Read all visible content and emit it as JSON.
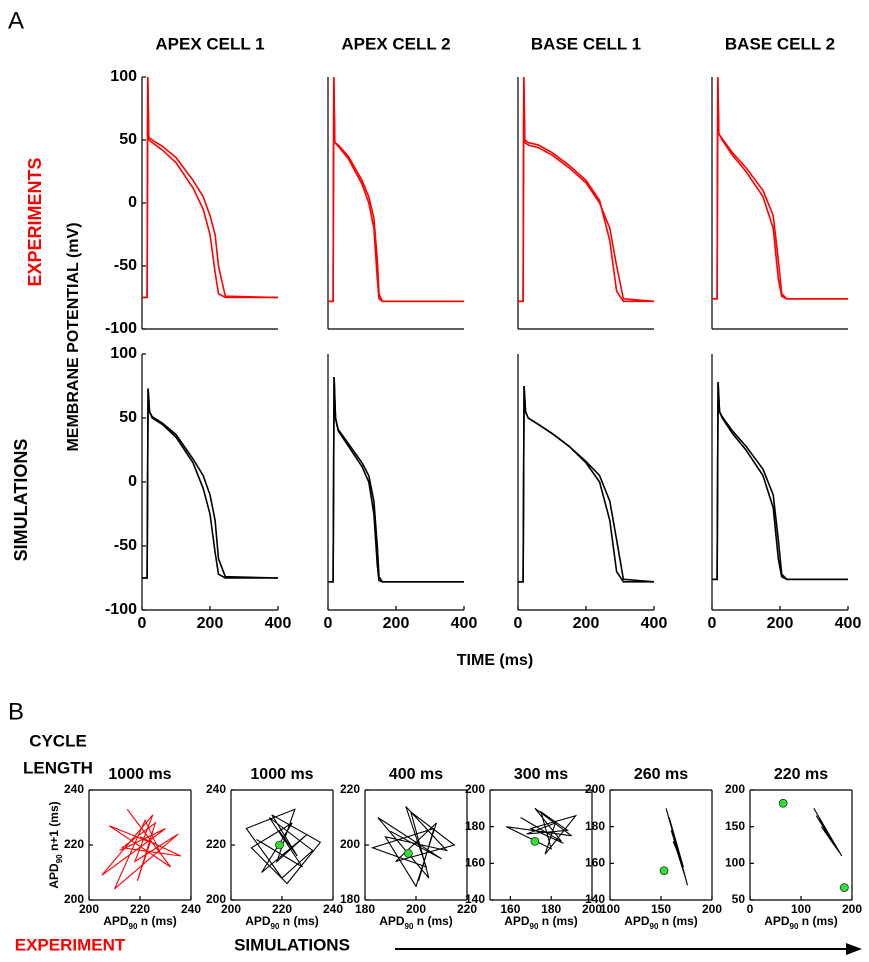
{
  "panel_labels": [
    "A",
    "B"
  ],
  "ylabel": "MEMBRANE POTENTIAL (mV)",
  "xlabel": "TIME (ms)",
  "row_labels": [
    "EXPERIMENTS",
    "SIMULATIONS"
  ],
  "cycle_length_label": [
    "CYCLE",
    "LENGTH"
  ],
  "footer": [
    "EXPERIMENT",
    "SIMULATIONS"
  ],
  "chart_data": [
    {
      "type": "line",
      "title": "APEX CELL 1",
      "xlim": [
        0,
        400
      ],
      "ylim": [
        -100,
        100
      ],
      "yticks": [
        -100,
        -50,
        0,
        50,
        100
      ],
      "x": [
        0,
        15,
        17,
        20,
        30,
        60,
        100,
        150,
        180,
        200,
        215,
        225,
        245,
        400
      ],
      "series": [
        {
          "color": "#ff0000",
          "values": [
            -75,
            -75,
            100,
            50,
            48,
            42,
            32,
            12,
            -5,
            -25,
            -55,
            -72,
            -75,
            -75
          ]
        },
        {
          "color": "#ff0000",
          "values": [
            -75,
            -75,
            100,
            52,
            50,
            45,
            36,
            18,
            5,
            -10,
            -25,
            -50,
            -74,
            -75
          ]
        }
      ]
    },
    {
      "type": "line",
      "title": "APEX CELL 2",
      "xlim": [
        0,
        400
      ],
      "ylim": [
        -100,
        100
      ],
      "x": [
        0,
        15,
        17,
        20,
        30,
        60,
        100,
        120,
        135,
        145,
        150,
        160,
        400
      ],
      "series": [
        {
          "color": "#ff0000",
          "values": [
            -78,
            -78,
            100,
            48,
            45,
            35,
            15,
            0,
            -20,
            -60,
            -76,
            -78,
            -78
          ]
        },
        {
          "color": "#ff0000",
          "values": [
            -78,
            -78,
            100,
            48,
            46,
            37,
            18,
            5,
            -12,
            -45,
            -72,
            -78,
            -78
          ]
        }
      ]
    },
    {
      "type": "line",
      "title": "BASE CELL 1",
      "xlim": [
        0,
        400
      ],
      "ylim": [
        -100,
        100
      ],
      "x": [
        0,
        15,
        17,
        20,
        30,
        60,
        100,
        150,
        200,
        240,
        270,
        290,
        310,
        400
      ],
      "series": [
        {
          "color": "#ff0000",
          "values": [
            -78,
            -78,
            100,
            50,
            48,
            46,
            40,
            30,
            18,
            2,
            -30,
            -70,
            -78,
            -78
          ]
        },
        {
          "color": "#ff0000",
          "values": [
            -78,
            -78,
            100,
            48,
            46,
            44,
            38,
            28,
            16,
            0,
            -20,
            -50,
            -76,
            -78
          ]
        }
      ]
    },
    {
      "type": "line",
      "title": "BASE CELL 2",
      "xlim": [
        0,
        400
      ],
      "ylim": [
        -100,
        100
      ],
      "x": [
        0,
        15,
        17,
        20,
        30,
        60,
        100,
        150,
        180,
        195,
        205,
        220,
        400
      ],
      "series": [
        {
          "color": "#ff0000",
          "values": [
            -76,
            -76,
            100,
            55,
            50,
            38,
            25,
            5,
            -20,
            -60,
            -74,
            -76,
            -76
          ]
        },
        {
          "color": "#ff0000",
          "values": [
            -76,
            -76,
            100,
            55,
            51,
            40,
            28,
            10,
            -10,
            -45,
            -72,
            -76,
            -76
          ]
        }
      ]
    },
    {
      "type": "line",
      "xlim": [
        0,
        400
      ],
      "ylim": [
        -100,
        100
      ],
      "yticks": [
        -100,
        -50,
        0,
        50,
        100
      ],
      "xticks": [
        0,
        200,
        400
      ],
      "x": [
        0,
        15,
        18,
        22,
        30,
        60,
        100,
        150,
        180,
        200,
        215,
        225,
        245,
        400
      ],
      "series": [
        {
          "color": "#000000",
          "values": [
            -75,
            -75,
            73,
            55,
            50,
            45,
            35,
            15,
            -5,
            -25,
            -55,
            -72,
            -75,
            -75
          ]
        },
        {
          "color": "#000000",
          "values": [
            -75,
            -75,
            73,
            55,
            51,
            46,
            37,
            18,
            5,
            -10,
            -30,
            -60,
            -74,
            -75
          ]
        }
      ]
    },
    {
      "type": "line",
      "xlim": [
        0,
        400
      ],
      "ylim": [
        -100,
        100
      ],
      "xticks": [
        0,
        200,
        400
      ],
      "x": [
        0,
        15,
        18,
        22,
        30,
        60,
        100,
        120,
        135,
        145,
        150,
        160,
        400
      ],
      "series": [
        {
          "color": "#000000",
          "values": [
            -78,
            -78,
            82,
            50,
            40,
            28,
            12,
            0,
            -25,
            -65,
            -77,
            -78,
            -78
          ]
        },
        {
          "color": "#000000",
          "values": [
            -78,
            -78,
            82,
            50,
            41,
            30,
            15,
            5,
            -15,
            -50,
            -74,
            -78,
            -78
          ]
        }
      ]
    },
    {
      "type": "line",
      "xlim": [
        0,
        400
      ],
      "ylim": [
        -100,
        100
      ],
      "xticks": [
        0,
        200,
        400
      ],
      "x": [
        0,
        15,
        18,
        22,
        30,
        60,
        100,
        150,
        200,
        240,
        270,
        290,
        310,
        400
      ],
      "series": [
        {
          "color": "#000000",
          "values": [
            -78,
            -78,
            75,
            55,
            50,
            45,
            38,
            28,
            15,
            0,
            -30,
            -70,
            -78,
            -78
          ]
        },
        {
          "color": "#000000",
          "values": [
            -78,
            -78,
            75,
            55,
            50,
            45,
            38,
            28,
            16,
            5,
            -15,
            -45,
            -76,
            -78
          ]
        }
      ]
    },
    {
      "type": "line",
      "xlim": [
        0,
        400
      ],
      "ylim": [
        -100,
        100
      ],
      "xticks": [
        0,
        200,
        400
      ],
      "x": [
        0,
        15,
        18,
        22,
        30,
        60,
        100,
        150,
        180,
        195,
        205,
        220,
        400
      ],
      "series": [
        {
          "color": "#000000",
          "values": [
            -76,
            -76,
            78,
            55,
            50,
            38,
            25,
            5,
            -20,
            -60,
            -74,
            -76,
            -76
          ]
        },
        {
          "color": "#000000",
          "values": [
            -76,
            -76,
            78,
            55,
            51,
            40,
            28,
            10,
            -10,
            -45,
            -72,
            -76,
            -76
          ]
        }
      ]
    },
    {
      "type": "line",
      "title": "1000 ms",
      "xlim": [
        200,
        240
      ],
      "ylim": [
        200,
        240
      ],
      "xticks": [
        200,
        220,
        240
      ],
      "yticks": [
        200,
        220,
        240
      ],
      "xlabel": {
        "main": "APD",
        "sub": "90",
        "rest": " n (ms)"
      },
      "ylabel": {
        "main": "APD",
        "sub": "90",
        "rest": " n+1 (ms)"
      },
      "color": "#ff0000",
      "x": [
        212,
        230,
        205,
        225,
        218,
        235,
        210,
        222,
        228,
        215,
        232,
        208,
        224,
        219,
        226,
        213,
        236,
        220
      ],
      "values": [
        218,
        226,
        209,
        231,
        214,
        224,
        204,
        229,
        217,
        233,
        212,
        227,
        221,
        207,
        228,
        219,
        216,
        223
      ]
    },
    {
      "type": "line",
      "title": "1000 ms",
      "xlim": [
        200,
        240
      ],
      "ylim": [
        200,
        240
      ],
      "xticks": [
        200,
        220,
        240
      ],
      "yticks": [
        200,
        220,
        240
      ],
      "xlabel": {
        "main": "APD",
        "sub": "90",
        "rest": " n (ms)"
      },
      "color": "#000000",
      "x": [
        210,
        228,
        215,
        232,
        220,
        206,
        225,
        218,
        230,
        212,
        224,
        208,
        222,
        235,
        216,
        226,
        219
      ],
      "values": [
        222,
        212,
        230,
        218,
        208,
        226,
        233,
        214,
        224,
        210,
        228,
        219,
        206,
        221,
        231,
        216,
        225
      ],
      "markers": [
        {
          "x": 219,
          "y": 220,
          "color": "#33dd33"
        }
      ]
    },
    {
      "type": "line",
      "title": "400 ms",
      "xlim": [
        180,
        220
      ],
      "ylim": [
        180,
        220
      ],
      "xticks": [
        180,
        200,
        220
      ],
      "yticks": [
        180,
        200,
        220
      ],
      "xlabel": {
        "main": "APD",
        "sub": "90",
        "rest": " n (ms)"
      },
      "color": "#000000",
      "x": [
        190,
        210,
        185,
        205,
        198,
        215,
        192,
        208,
        200,
        188,
        212,
        196,
        204,
        183,
        207,
        201
      ],
      "values": [
        205,
        195,
        210,
        188,
        212,
        200,
        194,
        208,
        185,
        203,
        198,
        214,
        192,
        199,
        206,
        187
      ],
      "markers": [
        {
          "x": 197,
          "y": 197,
          "color": "#33dd33"
        }
      ]
    },
    {
      "type": "line",
      "title": "300 ms",
      "xlim": [
        150,
        200
      ],
      "ylim": [
        140,
        200
      ],
      "xticks": [
        160,
        180,
        200
      ],
      "yticks": [
        140,
        160,
        180,
        200
      ],
      "xlabel": {
        "main": "APD",
        "sub": "90",
        "rest": " n (ms)"
      },
      "color": "#000000",
      "x": [
        165,
        185,
        172,
        190,
        158,
        180,
        175,
        188,
        168,
        182,
        177,
        192,
        170,
        186
      ],
      "values": [
        185,
        172,
        190,
        175,
        180,
        168,
        188,
        178,
        176,
        182,
        165,
        186,
        179,
        171
      ],
      "markers": [
        {
          "x": 172,
          "y": 172,
          "color": "#33dd33"
        }
      ]
    },
    {
      "type": "line",
      "title": "260 ms",
      "xlim": [
        100,
        200
      ],
      "ylim": [
        140,
        200
      ],
      "xticks": [
        100,
        150,
        200
      ],
      "yticks": [
        140,
        160,
        180,
        200
      ],
      "xlabel": {
        "main": "APD",
        "sub": "90",
        "rest": " n (ms)"
      },
      "color": "#000000",
      "x": [
        160,
        170,
        158,
        172,
        162,
        168,
        155,
        174,
        165,
        163,
        176,
        159
      ],
      "values": [
        178,
        160,
        185,
        158,
        172,
        164,
        190,
        152,
        168,
        175,
        148,
        182
      ],
      "markers": [
        {
          "x": 153,
          "y": 156,
          "color": "#33dd33"
        }
      ]
    },
    {
      "type": "line",
      "title": "220 ms",
      "xlim": [
        0,
        200
      ],
      "ylim": [
        50,
        200
      ],
      "xticks": [
        0,
        100,
        200
      ],
      "yticks": [
        50,
        100,
        150,
        200
      ],
      "xlabel": {
        "main": "APD",
        "sub": "90",
        "rest": " n (ms)"
      },
      "color": "#000000",
      "x": [
        125,
        180,
        130,
        170,
        140,
        160,
        135,
        175,
        150,
        165,
        145
      ],
      "values": [
        175,
        110,
        165,
        120,
        150,
        130,
        160,
        115,
        140,
        125,
        145
      ],
      "markers": [
        {
          "x": 65,
          "y": 182,
          "color": "#33dd33"
        },
        {
          "x": 185,
          "y": 67,
          "color": "#33dd33"
        }
      ]
    }
  ]
}
